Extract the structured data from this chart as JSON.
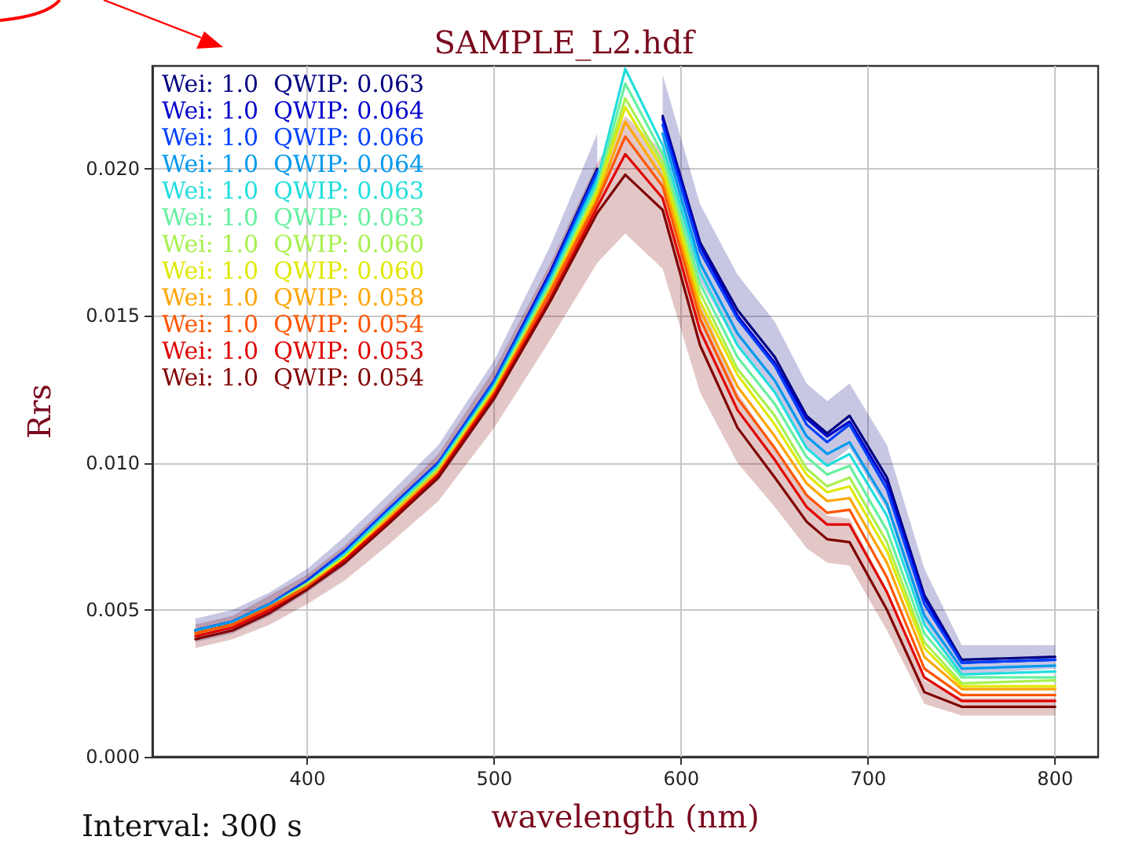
{
  "chart_data": {
    "type": "line",
    "title": "SAMPLE_L2.hdf",
    "xlabel": "wavelength (nm)",
    "ylabel": "Rrs",
    "annotations": [
      "Interval: 300 s"
    ],
    "x": [
      340,
      360,
      380,
      400,
      420,
      443,
      470,
      500,
      530,
      555,
      570,
      590,
      610,
      630,
      650,
      667,
      678,
      690,
      710,
      730,
      750,
      800
    ],
    "xlim": [
      317,
      823
    ],
    "xticks": [
      400,
      500,
      600,
      700,
      800
    ],
    "ylim": [
      0,
      0.0235
    ],
    "yticks": [
      {
        "value": 0,
        "label": "0.000"
      },
      {
        "value": 0.005,
        "label": "0.005"
      },
      {
        "value": 0.01,
        "label": "0.010"
      },
      {
        "value": 0.015,
        "label": "0.015"
      },
      {
        "value": 0.02,
        "label": "0.020"
      }
    ],
    "grid": true,
    "legend": "top left",
    "marker": "none",
    "line_style": "solid",
    "series": [
      {
        "name": "Wei: 1.0  QWIP: 0.063",
        "color": "#00007f",
        "values": [
          0.0043,
          0.0046,
          0.0052,
          0.006,
          0.007,
          0.0084,
          0.01,
          0.0128,
          0.0165,
          0.02,
          null,
          0.0218,
          0.0175,
          0.0152,
          0.0136,
          0.0116,
          0.011,
          0.0116,
          0.0095,
          0.0055,
          0.0033,
          0.0034
        ],
        "lower": [
          0.0039,
          0.0042,
          0.0048,
          0.0056,
          0.0065,
          0.0079,
          0.0094,
          0.0121,
          0.0156,
          0.0188,
          null,
          0.0204,
          0.0162,
          0.014,
          0.0124,
          0.0105,
          0.0099,
          0.0105,
          0.0084,
          0.0046,
          0.0028,
          0.003
        ],
        "upper": [
          0.0047,
          0.005,
          0.0056,
          0.0064,
          0.0075,
          0.0089,
          0.0106,
          0.0135,
          0.0174,
          0.0212,
          null,
          0.0232,
          0.0188,
          0.0164,
          0.0148,
          0.0127,
          0.0121,
          0.0127,
          0.0106,
          0.0064,
          0.0038,
          0.0038
        ]
      },
      {
        "name": "Wei: 1.0  QWIP: 0.064",
        "color": "#0000cc",
        "values": [
          0.0043,
          0.0046,
          0.0052,
          0.006,
          0.007,
          0.0084,
          0.01,
          0.0128,
          0.0165,
          0.0199,
          null,
          0.0217,
          0.0174,
          0.015,
          0.0134,
          0.0115,
          0.0109,
          0.0114,
          0.0093,
          0.0054,
          0.0032,
          0.0033
        ]
      },
      {
        "name": "Wei: 1.0  QWIP: 0.066",
        "color": "#0040ff",
        "values": [
          0.0043,
          0.0046,
          0.0052,
          0.006,
          0.007,
          0.0084,
          0.01,
          0.0128,
          0.0164,
          0.0199,
          null,
          0.0215,
          0.0172,
          0.0149,
          0.0133,
          0.0113,
          0.0107,
          0.0113,
          0.0091,
          0.0052,
          0.0032,
          0.0033
        ]
      },
      {
        "name": "Wei: 1.0  QWIP: 0.064",
        "color": "#0099ee",
        "values": [
          0.0043,
          0.0046,
          0.0052,
          0.0059,
          0.0069,
          0.0083,
          0.0099,
          0.0127,
          0.0163,
          0.0197,
          null,
          0.0212,
          0.0168,
          0.0144,
          0.0128,
          0.0109,
          0.0103,
          0.0107,
          0.0086,
          0.0048,
          0.003,
          0.0031
        ]
      },
      {
        "name": "Wei: 1.0  QWIP: 0.063",
        "color": "#22dddd",
        "values": [
          0.0042,
          0.0045,
          0.0051,
          0.0059,
          0.0069,
          0.0083,
          0.0099,
          0.0126,
          0.0162,
          0.0196,
          0.0234,
          0.0208,
          0.0165,
          0.014,
          0.0124,
          0.0105,
          0.0099,
          0.0103,
          0.0082,
          0.0045,
          0.0028,
          0.0029
        ]
      },
      {
        "name": "Wei: 1.0  QWIP: 0.063",
        "color": "#66f0a0",
        "values": [
          0.0042,
          0.0045,
          0.0051,
          0.0059,
          0.0068,
          0.0082,
          0.0098,
          0.0126,
          0.0161,
          0.0194,
          0.0229,
          0.0205,
          0.0161,
          0.0136,
          0.012,
          0.0102,
          0.0096,
          0.0099,
          0.0077,
          0.0042,
          0.0027,
          0.0027
        ]
      },
      {
        "name": "Wei: 1.0  QWIP: 0.060",
        "color": "#a8f050",
        "values": [
          0.0042,
          0.0045,
          0.0051,
          0.0059,
          0.0068,
          0.0082,
          0.0098,
          0.0125,
          0.016,
          0.0193,
          0.0224,
          0.0202,
          0.0158,
          0.0132,
          0.0116,
          0.0098,
          0.0092,
          0.0095,
          0.0073,
          0.0039,
          0.0025,
          0.0026
        ]
      },
      {
        "name": "Wei: 1.0  QWIP: 0.060",
        "color": "#e0e800",
        "values": [
          0.0042,
          0.0045,
          0.0051,
          0.0058,
          0.0068,
          0.0081,
          0.0097,
          0.0125,
          0.0159,
          0.0192,
          0.0221,
          0.02,
          0.0155,
          0.013,
          0.0113,
          0.0096,
          0.009,
          0.0092,
          0.007,
          0.0037,
          0.0024,
          0.0024
        ]
      },
      {
        "name": "Wei: 1.0  QWIP: 0.058",
        "color": "#ffa500",
        "values": [
          0.0042,
          0.0045,
          0.0051,
          0.0058,
          0.0067,
          0.0081,
          0.0097,
          0.0124,
          0.0159,
          0.019,
          0.0216,
          0.0197,
          0.0152,
          0.0126,
          0.0109,
          0.0093,
          0.0087,
          0.0088,
          0.0066,
          0.0034,
          0.0023,
          0.0023
        ]
      },
      {
        "name": "Wei: 1.0  QWIP: 0.054",
        "color": "#ff5500",
        "values": [
          0.0042,
          0.0045,
          0.0051,
          0.0058,
          0.0067,
          0.008,
          0.0096,
          0.0124,
          0.0158,
          0.0189,
          0.0211,
          0.0194,
          0.0149,
          0.0122,
          0.0105,
          0.0089,
          0.0083,
          0.0084,
          0.0061,
          0.003,
          0.0021,
          0.0021
        ]
      },
      {
        "name": "Wei: 1.0  QWIP: 0.053",
        "color": "#e00000",
        "values": [
          0.0041,
          0.0044,
          0.005,
          0.0057,
          0.0067,
          0.008,
          0.0096,
          0.0123,
          0.0156,
          0.0187,
          0.0205,
          0.019,
          0.0145,
          0.0118,
          0.0101,
          0.0085,
          0.0079,
          0.0079,
          0.0056,
          0.0027,
          0.0019,
          0.0019
        ]
      },
      {
        "name": "Wei: 1.0  QWIP: 0.054",
        "color": "#800000",
        "values": [
          0.004,
          0.0043,
          0.0049,
          0.0057,
          0.0066,
          0.0079,
          0.0095,
          0.0122,
          0.0155,
          0.0185,
          0.0198,
          0.0186,
          0.014,
          0.0112,
          0.0095,
          0.008,
          0.0074,
          0.0073,
          0.005,
          0.0022,
          0.0017,
          0.0017
        ],
        "lower": [
          0.0037,
          0.004,
          0.0045,
          0.0052,
          0.006,
          0.0072,
          0.0087,
          0.0112,
          0.0142,
          0.0168,
          0.0178,
          0.0166,
          0.0124,
          0.01,
          0.0085,
          0.0071,
          0.0066,
          0.0065,
          0.0043,
          0.0018,
          0.0014,
          0.0014
        ],
        "upper": [
          0.0045,
          0.0048,
          0.0055,
          0.0062,
          0.0072,
          0.0086,
          0.0103,
          0.0132,
          0.0168,
          0.0202,
          0.0218,
          0.0206,
          0.0156,
          0.0124,
          0.0105,
          0.0089,
          0.0082,
          0.0081,
          0.0057,
          0.0026,
          0.002,
          0.002
        ]
      }
    ]
  }
}
